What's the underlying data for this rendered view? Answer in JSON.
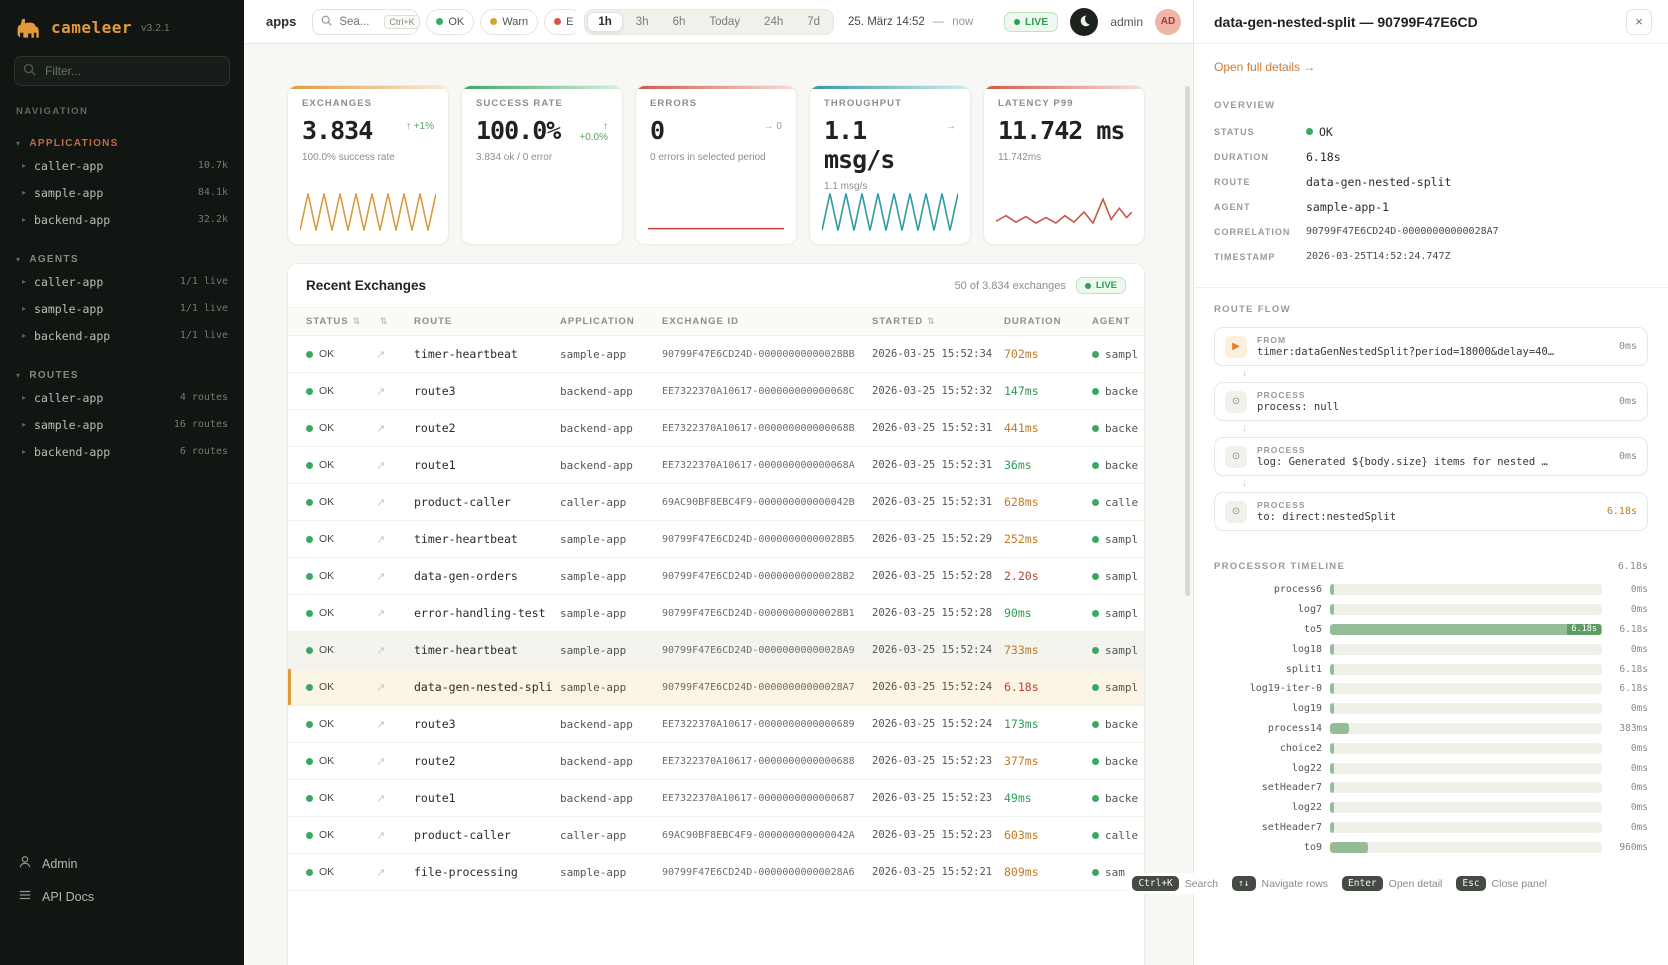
{
  "brand": {
    "name": "cameleer",
    "version": "v3.2.1"
  },
  "sidebar": {
    "filter_placeholder": "Filter...",
    "nav_label": "NAVIGATION",
    "sections": [
      {
        "label": "APPLICATIONS",
        "color": "#c4664a",
        "items": [
          {
            "label": "caller-app",
            "value": "10.7k"
          },
          {
            "label": "sample-app",
            "value": "84.1k"
          },
          {
            "label": "backend-app",
            "value": "32.2k"
          }
        ]
      },
      {
        "label": "AGENTS",
        "color": "#7e8c80",
        "items": [
          {
            "label": "caller-app",
            "value": "1/1 live"
          },
          {
            "label": "sample-app",
            "value": "1/1 live"
          },
          {
            "label": "backend-app",
            "value": "1/1 live"
          }
        ]
      },
      {
        "label": "ROUTES",
        "color": "#7e8c80",
        "items": [
          {
            "label": "caller-app",
            "value": "4 routes"
          },
          {
            "label": "sample-app",
            "value": "16 routes"
          },
          {
            "label": "backend-app",
            "value": "6 routes"
          }
        ]
      }
    ],
    "footer": [
      {
        "label": "Admin"
      },
      {
        "label": "API Docs"
      }
    ]
  },
  "topbar": {
    "context": "apps",
    "search_placeholder": "Sea...",
    "search_shortcut": "Ctrl+K",
    "chips": [
      {
        "label": "OK",
        "color": "#3aa860"
      },
      {
        "label": "Warn",
        "color": "#d9a13b"
      },
      {
        "label": "E",
        "color": "#cf5a48"
      }
    ],
    "ranges": [
      "1h",
      "3h",
      "6h",
      "Today",
      "24h",
      "7d"
    ],
    "active_range": "1h",
    "date": "25. März 14:52",
    "separator": "—",
    "now": "now",
    "live_label": "LIVE",
    "user": "admin",
    "avatar": "AD"
  },
  "kpis": [
    {
      "title": "EXCHANGES",
      "value": "3.834",
      "delta": "↑ +1%",
      "delta_color": "#57a169",
      "sub": "100.0% success rate",
      "accent": "#e09a3e",
      "spark": "zigzag",
      "spark_color": "#e09a3e"
    },
    {
      "title": "SUCCESS RATE",
      "value": "100.0%",
      "delta": "↑\n+0.0%",
      "delta_color": "#57a169",
      "sub": "3.834 ok / 0 error",
      "accent": "#3aa860",
      "spark": "none",
      "spark_color": ""
    },
    {
      "title": "ERRORS",
      "value": "0",
      "delta": "→ 0",
      "delta_color": "#9a9a93",
      "sub": "0 errors in selected period",
      "accent": "#cf5a48",
      "spark": "flat",
      "spark_color": "#c2443a"
    },
    {
      "title": "THROUGHPUT",
      "value": "1.1 msg/s",
      "delta": "→",
      "delta_color": "#9a9a93",
      "sub": "1.1 msg/s",
      "accent": "#2f9ba0",
      "spark": "zigzag",
      "spark_color": "#2f9ba0"
    },
    {
      "title": "LATENCY P99",
      "value": "11.742 ms",
      "delta": "",
      "delta_color": "",
      "sub": "11.742ms",
      "accent": "#cf5a48",
      "spark": "latency",
      "spark_color": "#c65847"
    }
  ],
  "exchanges": {
    "title": "Recent Exchanges",
    "summary": "50 of 3.834 exchanges",
    "live_label": "LIVE",
    "columns": [
      {
        "label": "STATUS",
        "sortable": true
      },
      {
        "label": "",
        "sortable": true
      },
      {
        "label": "ROUTE",
        "sortable": false
      },
      {
        "label": "APPLICATION",
        "sortable": false
      },
      {
        "label": "EXCHANGE ID",
        "sortable": false
      },
      {
        "label": "STARTED",
        "sortable": true
      },
      {
        "label": "DURATION",
        "sortable": false
      },
      {
        "label": "AGENT",
        "sortable": false
      }
    ],
    "rows": [
      {
        "status": "OK",
        "route": "timer-heartbeat",
        "app": "sample-app",
        "exchange_id": "90799F47E6CD24D-00000000000028BB",
        "started": "2026-03-25 15:52:34",
        "duration": "702ms",
        "duration_level": "amber",
        "agent": "sample"
      },
      {
        "status": "OK",
        "route": "route3",
        "app": "backend-app",
        "exchange_id": "EE7322370A10617-000000000000068C",
        "started": "2026-03-25 15:52:32",
        "duration": "147ms",
        "duration_level": "green",
        "agent": "backen"
      },
      {
        "status": "OK",
        "route": "route2",
        "app": "backend-app",
        "exchange_id": "EE7322370A10617-000000000000068B",
        "started": "2026-03-25 15:52:31",
        "duration": "441ms",
        "duration_level": "amber",
        "agent": "backen"
      },
      {
        "status": "OK",
        "route": "route1",
        "app": "backend-app",
        "exchange_id": "EE7322370A10617-000000000000068A",
        "started": "2026-03-25 15:52:31",
        "duration": "36ms",
        "duration_level": "green",
        "agent": "backen"
      },
      {
        "status": "OK",
        "route": "product-caller",
        "app": "caller-app",
        "exchange_id": "69AC90BF8EBC4F9-000000000000042B",
        "started": "2026-03-25 15:52:31",
        "duration": "628ms",
        "duration_level": "amber",
        "agent": "caller"
      },
      {
        "status": "OK",
        "route": "timer-heartbeat",
        "app": "sample-app",
        "exchange_id": "90799F47E6CD24D-00000000000028B5",
        "started": "2026-03-25 15:52:29",
        "duration": "252ms",
        "duration_level": "amber",
        "agent": "sample"
      },
      {
        "status": "OK",
        "route": "data-gen-orders",
        "app": "sample-app",
        "exchange_id": "90799F47E6CD24D-00000000000028B2",
        "started": "2026-03-25 15:52:28",
        "duration": "2.20s",
        "duration_level": "red",
        "agent": "sample"
      },
      {
        "status": "OK",
        "route": "error-handling-test",
        "app": "sample-app",
        "exchange_id": "90799F47E6CD24D-00000000000028B1",
        "started": "2026-03-25 15:52:28",
        "duration": "90ms",
        "duration_level": "green",
        "agent": "sample"
      },
      {
        "status": "OK",
        "route": "timer-heartbeat",
        "app": "sample-app",
        "exchange_id": "90799F47E6CD24D-00000000000028A9",
        "started": "2026-03-25 15:52:24",
        "duration": "733ms",
        "duration_level": "amber",
        "agent": "sample",
        "hovered": true
      },
      {
        "status": "OK",
        "route": "data-gen-nested-split",
        "app": "sample-app",
        "exchange_id": "90799F47E6CD24D-00000000000028A7",
        "started": "2026-03-25 15:52:24",
        "duration": "6.18s",
        "duration_level": "red",
        "agent": "sample",
        "selected": true
      },
      {
        "status": "OK",
        "route": "route3",
        "app": "backend-app",
        "exchange_id": "EE7322370A10617-0000000000000689",
        "started": "2026-03-25 15:52:24",
        "duration": "173ms",
        "duration_level": "green",
        "agent": "backen"
      },
      {
        "status": "OK",
        "route": "route2",
        "app": "backend-app",
        "exchange_id": "EE7322370A10617-0000000000000688",
        "started": "2026-03-25 15:52:23",
        "duration": "377ms",
        "duration_level": "amber",
        "agent": "backen"
      },
      {
        "status": "OK",
        "route": "route1",
        "app": "backend-app",
        "exchange_id": "EE7322370A10617-0000000000000687",
        "started": "2026-03-25 15:52:23",
        "duration": "49ms",
        "duration_level": "green",
        "agent": "backen"
      },
      {
        "status": "OK",
        "route": "product-caller",
        "app": "caller-app",
        "exchange_id": "69AC90BF8EBC4F9-000000000000042A",
        "started": "2026-03-25 15:52:23",
        "duration": "603ms",
        "duration_level": "amber",
        "agent": "caller"
      },
      {
        "status": "OK",
        "route": "file-processing",
        "app": "sample-app",
        "exchange_id": "90799F47E6CD24D-00000000000028A6",
        "started": "2026-03-25 15:52:21",
        "duration": "809ms",
        "duration_level": "amber",
        "agent": "sam"
      }
    ]
  },
  "detail": {
    "title": "data-gen-nested-split — 90799F47E6CD",
    "open_link": "Open full details →",
    "overview_label": "OVERVIEW",
    "overview": [
      {
        "label": "STATUS",
        "value": "OK",
        "dot": true
      },
      {
        "label": "DURATION",
        "value": "6.18s"
      },
      {
        "label": "ROUTE",
        "value": "data-gen-nested-split"
      },
      {
        "label": "AGENT",
        "value": "sample-app-1"
      },
      {
        "label": "CORRELATION",
        "value": "90799F47E6CD24D-00000000000028A7",
        "small": true
      },
      {
        "label": "TIMESTAMP",
        "value": "2026-03-25T14:52:24.747Z",
        "small": true
      }
    ],
    "routeflow_label": "ROUTE FLOW",
    "flow": [
      {
        "kind": "FROM",
        "icon": "play",
        "text": "timer:dataGenNestedSplit?period=18000&delay=40…",
        "time": "0ms"
      },
      {
        "kind": "PROCESS",
        "icon": "process",
        "text": "process: null",
        "time": "0ms"
      },
      {
        "kind": "PROCESS",
        "icon": "process",
        "text": "log: Generated ${body.size} items for nested …",
        "time": "0ms"
      },
      {
        "kind": "PROCESS",
        "icon": "process",
        "text": "to: direct:nestedSplit",
        "time": "6.18s",
        "time_color": "#c07c22"
      }
    ],
    "timeline_label": "PROCESSOR TIMELINE",
    "timeline_total": "6.18s",
    "timeline": [
      {
        "name": "process6",
        "value": "0ms",
        "pct": 1.5
      },
      {
        "name": "log7",
        "value": "0ms",
        "pct": 1.5
      },
      {
        "name": "to5",
        "value": "6.18s",
        "pct": 100,
        "bar_label": "6.18s"
      },
      {
        "name": "log18",
        "value": "0ms",
        "pct": 1.5
      },
      {
        "name": "split1",
        "value": "6.18s",
        "pct": 1.5
      },
      {
        "name": "log19-iter-0",
        "value": "6.18s",
        "pct": 1.5
      },
      {
        "name": "log19",
        "value": "0ms",
        "pct": 1.5
      },
      {
        "name": "process14",
        "value": "383ms",
        "pct": 7
      },
      {
        "name": "choice2",
        "value": "0ms",
        "pct": 1.5
      },
      {
        "name": "log22",
        "value": "0ms",
        "pct": 1.5
      },
      {
        "name": "setHeader7",
        "value": "0ms",
        "pct": 1.5
      },
      {
        "name": "log22",
        "value": "0ms",
        "pct": 1.5
      },
      {
        "name": "setHeader7",
        "value": "0ms",
        "pct": 1.5
      },
      {
        "name": "to9",
        "value": "960ms",
        "pct": 14
      }
    ]
  },
  "hints": [
    {
      "key": "Ctrl+K",
      "label": "Search"
    },
    {
      "key": "↑↓",
      "label": "Navigate rows"
    },
    {
      "key": "Enter",
      "label": "Open detail"
    },
    {
      "key": "Esc",
      "label": "Close panel"
    }
  ]
}
